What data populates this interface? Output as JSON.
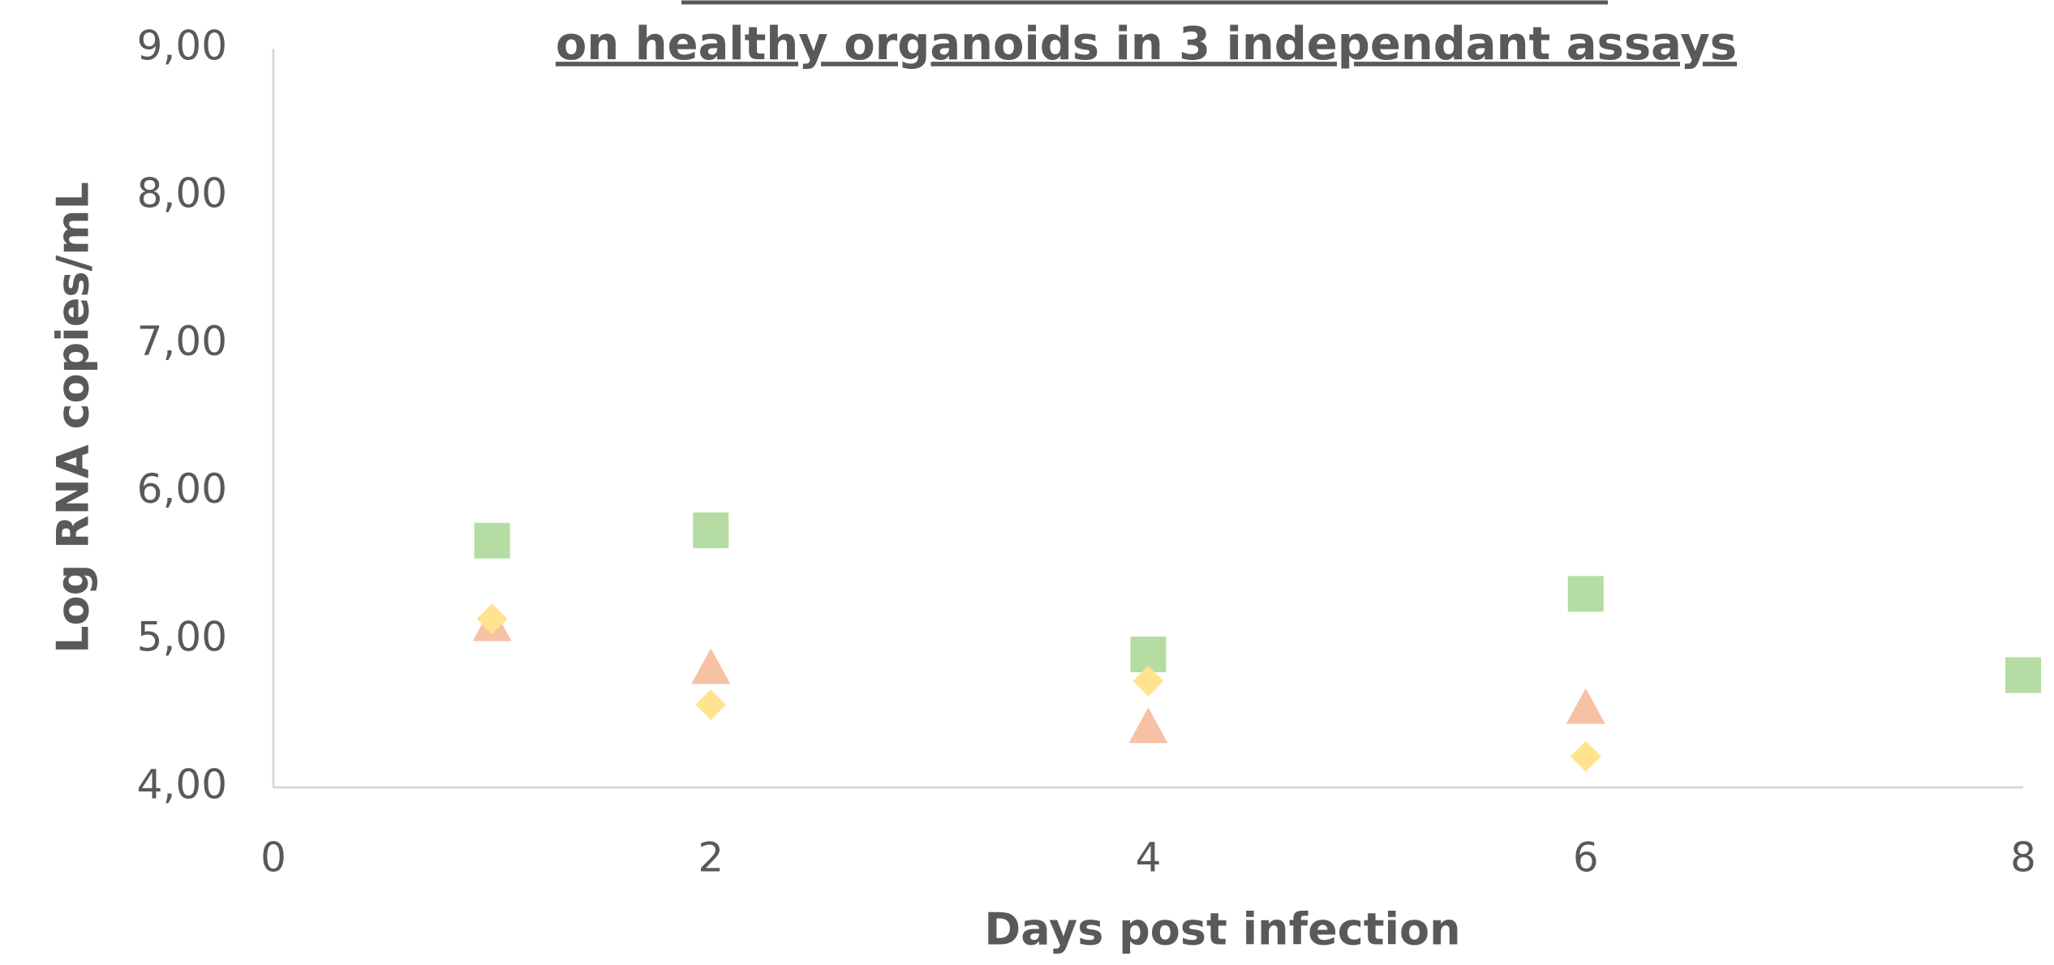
{
  "chart_data": {
    "type": "scatter",
    "title": "on healthy organoids in 3 independant assays",
    "xlabel": "Days post infection",
    "ylabel": "Log RNA copies/mL",
    "xlim": [
      0,
      8
    ],
    "xticks": [
      0,
      2,
      4,
      6,
      8
    ],
    "ylim": [
      4,
      9
    ],
    "yticks": [
      {
        "value": 4,
        "label": "4,00"
      },
      {
        "value": 5,
        "label": "5,00"
      },
      {
        "value": 6,
        "label": "6,00"
      },
      {
        "value": 7,
        "label": "7,00"
      },
      {
        "value": 8,
        "label": "8,00"
      },
      {
        "value": 9,
        "label": "9,00"
      }
    ],
    "grid": false,
    "series": [
      {
        "color": "#b5dca2",
        "marker": "square",
        "x": [
          1,
          2,
          4,
          6,
          8
        ],
        "values": [
          5.67,
          5.74,
          4.9,
          5.31,
          4.76
        ]
      },
      {
        "color": "#f6c2a3",
        "marker": "triangle",
        "x": [
          1,
          2,
          4,
          6
        ],
        "values": [
          5.1,
          4.81,
          4.41,
          4.54
        ]
      },
      {
        "color": "#ffe38f",
        "marker": "diamond",
        "x": [
          1,
          2,
          4,
          6
        ],
        "values": [
          5.14,
          4.56,
          4.72,
          4.21
        ]
      }
    ]
  }
}
